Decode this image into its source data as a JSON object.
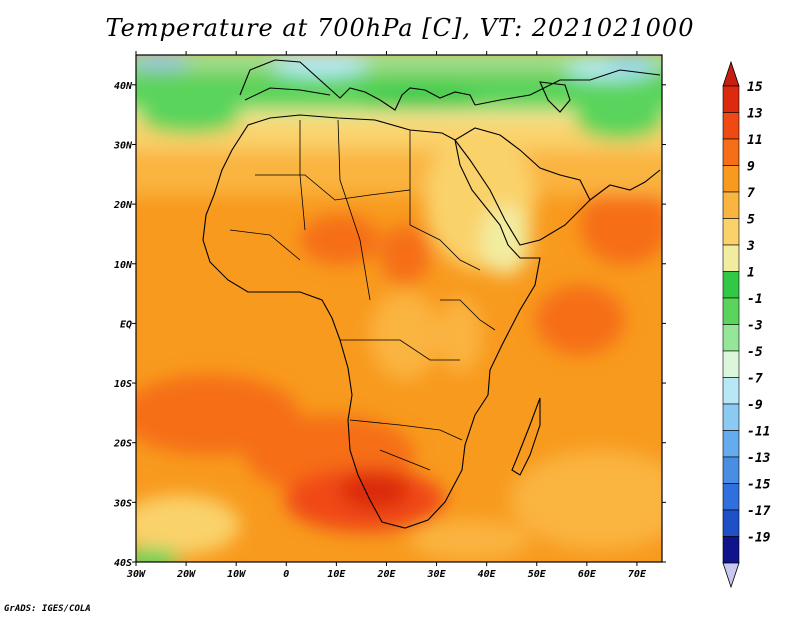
{
  "title": "Temperature at 700hPa [C], VT: 2021021000",
  "credit": "GrADS: IGES/COLA",
  "map": {
    "lon_ticks": [
      "30W",
      "20W",
      "10W",
      "0",
      "10E",
      "20E",
      "30E",
      "40E",
      "50E",
      "60E",
      "70E"
    ],
    "lat_ticks": [
      "40N",
      "30N",
      "20N",
      "10N",
      "EQ",
      "10S",
      "20S",
      "30S",
      "40S"
    ],
    "lon_range": [
      -30,
      75
    ],
    "lat_range": [
      -40,
      45
    ]
  },
  "colorbar": {
    "levels": [
      "15",
      "13",
      "11",
      "9",
      "7",
      "5",
      "3",
      "1",
      "-1",
      "-3",
      "-5",
      "-7",
      "-9",
      "-11",
      "-13",
      "-15",
      "-17",
      "-19"
    ],
    "colors": [
      "#dc2a10",
      "#f04a14",
      "#f66e18",
      "#f89a1e",
      "#fab440",
      "#fad26a",
      "#f2eca0",
      "#32c846",
      "#5ad45c",
      "#96e69a",
      "#dcf6dc",
      "#b8e8f6",
      "#8ccaf4",
      "#64acee",
      "#4a8ee4",
      "#3070dc",
      "#1e50c8",
      "#10148c"
    ],
    "top_arrow_color": "#c81e12",
    "bottom_arrow_color": "#c8c8f0"
  }
}
